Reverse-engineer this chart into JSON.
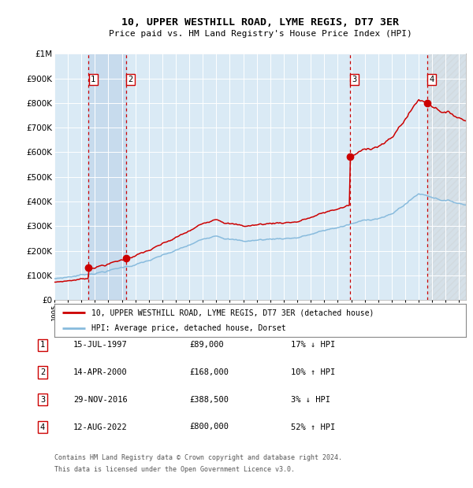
{
  "title": "10, UPPER WESTHILL ROAD, LYME REGIS, DT7 3ER",
  "subtitle": "Price paid vs. HM Land Registry's House Price Index (HPI)",
  "ylim": [
    0,
    1000000
  ],
  "xlim_start": 1995.0,
  "xlim_end": 2025.5,
  "background_color": "#ffffff",
  "plot_bg_color": "#daeaf5",
  "grid_color": "#ffffff",
  "sale_color": "#cc0000",
  "hpi_color": "#88bbdd",
  "sale_label": "10, UPPER WESTHILL ROAD, LYME REGIS, DT7 3ER (detached house)",
  "hpi_label": "HPI: Average price, detached house, Dorset",
  "transactions": [
    {
      "num": 1,
      "date": "15-JUL-1997",
      "price": 89000,
      "pct": "17%",
      "dir": "↓",
      "year": 1997.54
    },
    {
      "num": 2,
      "date": "14-APR-2000",
      "price": 168000,
      "pct": "10%",
      "dir": "↑",
      "year": 2000.29
    },
    {
      "num": 3,
      "date": "29-NOV-2016",
      "price": 388500,
      "pct": "3%",
      "dir": "↓",
      "year": 2016.91
    },
    {
      "num": 4,
      "date": "12-AUG-2022",
      "price": 800000,
      "pct": "52%",
      "dir": "↑",
      "year": 2022.62
    }
  ],
  "footnote1": "Contains HM Land Registry data © Crown copyright and database right 2024.",
  "footnote2": "This data is licensed under the Open Government Licence v3.0.",
  "shade_color": "#b8d0e8"
}
